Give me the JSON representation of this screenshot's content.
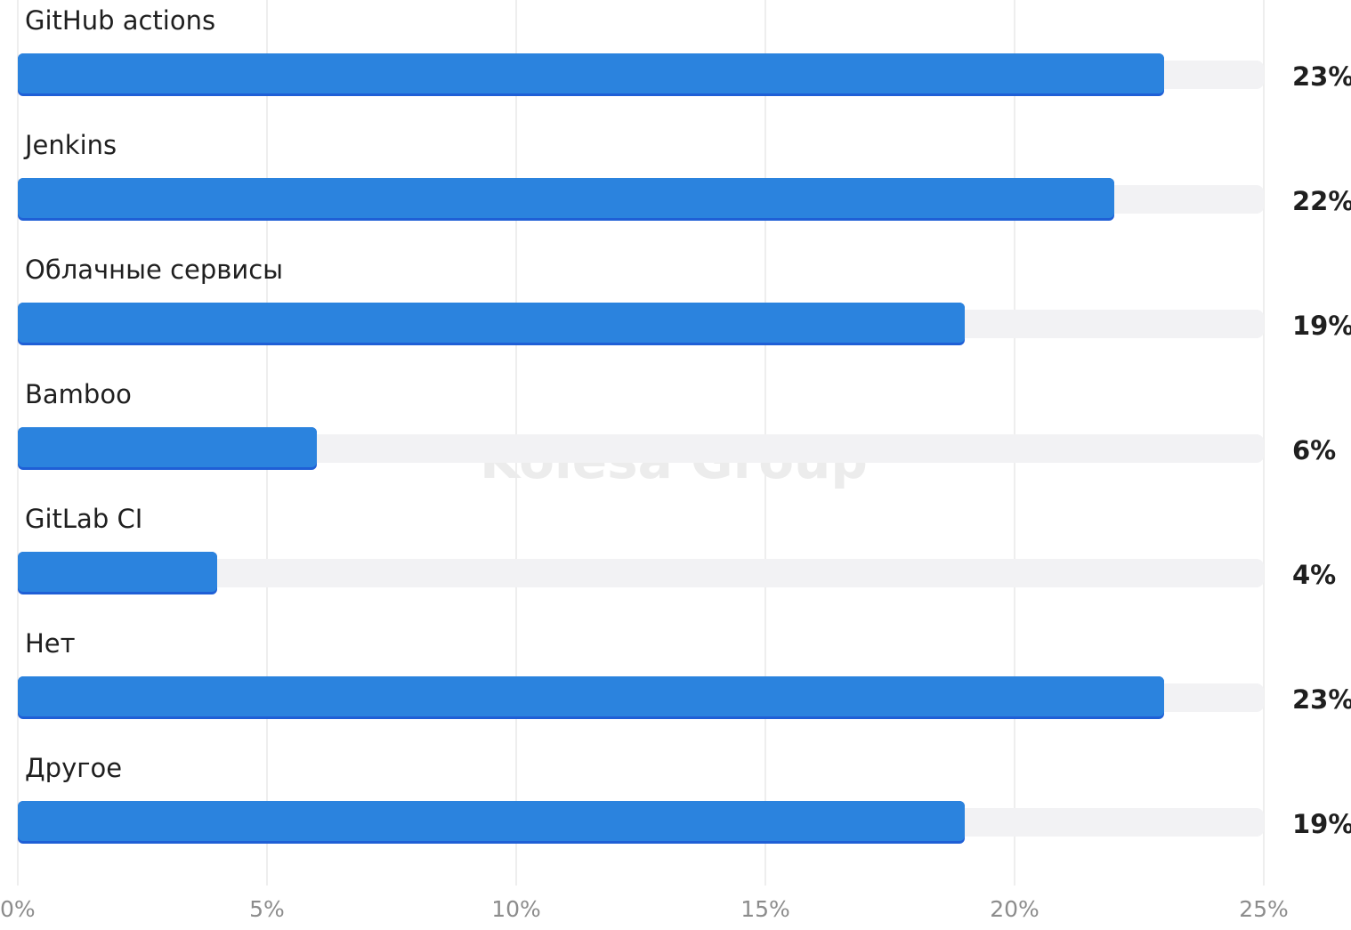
{
  "chart_data": {
    "type": "bar",
    "orientation": "horizontal",
    "categories": [
      "GitHub actions",
      "Jenkins",
      "Облачные сервисы",
      "Bamboo",
      "GitLab CI",
      "Нет",
      "Другое"
    ],
    "values": [
      23,
      22,
      19,
      6,
      4,
      23,
      19
    ],
    "value_labels": [
      "23%",
      "22%",
      "19%",
      "6%",
      "4%",
      "23%",
      "19%"
    ],
    "xlim": [
      0,
      25
    ],
    "xticks": [
      0,
      5,
      10,
      15,
      20,
      25
    ],
    "xtick_labels": [
      "0%",
      "5%",
      "10%",
      "15%",
      "20%",
      "25%"
    ],
    "grid": true,
    "watermark": "Kolesa Group",
    "colors": {
      "bar": "#2b83de",
      "bar_edge": "#1f5fd6",
      "track": "#f2f2f4",
      "grid": "#eeeeee"
    }
  }
}
